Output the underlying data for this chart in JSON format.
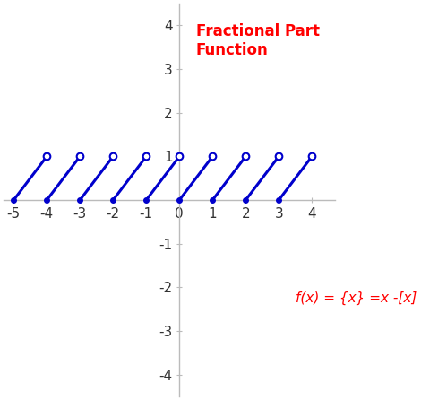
{
  "title": "Fractional Part\nFunction",
  "title_color": "red",
  "formula": "f(x) = {x} =x -[x]",
  "formula_color": "red",
  "xlim": [
    -5.3,
    4.7
  ],
  "ylim": [
    -4.5,
    4.5
  ],
  "xticks": [
    -5,
    -4,
    -3,
    -2,
    -1,
    0,
    1,
    2,
    3,
    4
  ],
  "yticks": [
    -4,
    -3,
    -2,
    -1,
    1,
    2,
    3,
    4
  ],
  "line_color": "#0000cc",
  "segments": [
    [
      -5,
      -4
    ],
    [
      -4,
      -3
    ],
    [
      -3,
      -2
    ],
    [
      -2,
      -1
    ],
    [
      -1,
      0
    ],
    [
      0,
      1
    ],
    [
      1,
      2
    ],
    [
      2,
      3
    ],
    [
      3,
      4
    ]
  ],
  "axis_color": "#bbbbbb",
  "tick_color": "#333333",
  "figsize": [
    4.7,
    4.46
  ],
  "dpi": 100
}
